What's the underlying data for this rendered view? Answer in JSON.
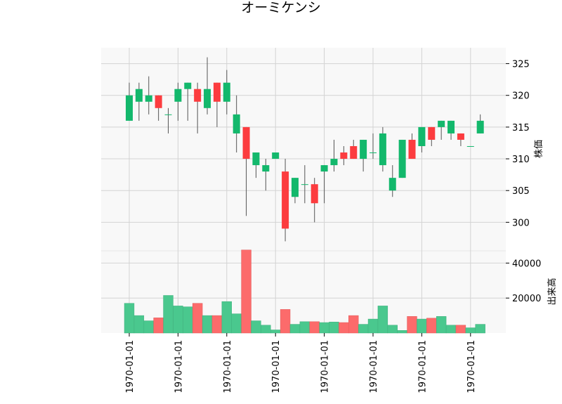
{
  "chart_data": {
    "type": "candlestick",
    "title": "オーミケンシ",
    "price_panel": {
      "ylabel": "株価",
      "yticks": [
        300,
        305,
        310,
        315,
        320,
        325
      ],
      "ylim": [
        295.5,
        327.5
      ]
    },
    "volume_panel": {
      "ylabel": "出来高",
      "yticks": [
        20000,
        40000
      ],
      "ylim": [
        0,
        47000
      ]
    },
    "xtick_labels": [
      "1970-01-01",
      "1970-01-01",
      "1970-01-01",
      "1970-01-01",
      "1970-01-01",
      "1970-01-01",
      "1970-01-01",
      "1970-01-01"
    ],
    "xtick_indices": [
      0,
      5,
      10,
      15,
      20,
      25,
      30,
      35
    ],
    "grid": true,
    "colors": {
      "up": "#13b86c",
      "down": "#fc3c3f",
      "up_volume": "#4ac88e",
      "down_volume": "#fc6b6b",
      "wick": "#555555",
      "background": "#f8f8f8",
      "grid": "#d3d3d3"
    },
    "candles": [
      {
        "open": 316,
        "high": 322,
        "low": 316,
        "close": 320,
        "volume": 17000
      },
      {
        "open": 319,
        "high": 322,
        "low": 316,
        "close": 321,
        "volume": 10000
      },
      {
        "open": 319,
        "high": 323,
        "low": 317,
        "close": 320,
        "volume": 7000
      },
      {
        "open": 320,
        "high": 320,
        "low": 316,
        "close": 318,
        "volume": 8700
      },
      {
        "open": 317,
        "high": 318,
        "low": 314,
        "close": 317,
        "volume": 21500
      },
      {
        "open": 319,
        "high": 322,
        "low": 316,
        "close": 321,
        "volume": 15500
      },
      {
        "open": 321,
        "high": 322,
        "low": 316,
        "close": 322,
        "volume": 15000
      },
      {
        "open": 321,
        "high": 322,
        "low": 314,
        "close": 319,
        "volume": 17000
      },
      {
        "open": 318,
        "high": 326,
        "low": 317,
        "close": 321,
        "volume": 10000
      },
      {
        "open": 322,
        "high": 322,
        "low": 315,
        "close": 319,
        "volume": 10000
      },
      {
        "open": 319,
        "high": 324,
        "low": 317,
        "close": 322,
        "volume": 18000
      },
      {
        "open": 314,
        "high": 320,
        "low": 311,
        "close": 317,
        "volume": 11000
      },
      {
        "open": 315,
        "high": 315,
        "low": 301,
        "close": 310,
        "volume": 47500
      },
      {
        "open": 309,
        "high": 311,
        "low": 307,
        "close": 311,
        "volume": 7000
      },
      {
        "open": 308,
        "high": 310,
        "low": 305,
        "close": 309,
        "volume": 4500
      },
      {
        "open": 310,
        "high": 311,
        "low": 310,
        "close": 311,
        "volume": 1800
      },
      {
        "open": 308,
        "high": 310,
        "low": 297,
        "close": 299,
        "volume": 13500
      },
      {
        "open": 304,
        "high": 307,
        "low": 303,
        "close": 307,
        "volume": 5000
      },
      {
        "open": 306,
        "high": 309,
        "low": 303,
        "close": 306,
        "volume": 6500
      },
      {
        "open": 306,
        "high": 307,
        "low": 300,
        "close": 303,
        "volume": 6500
      },
      {
        "open": 308,
        "high": 309,
        "low": 303,
        "close": 309,
        "volume": 6000
      },
      {
        "open": 309,
        "high": 313,
        "low": 308,
        "close": 310,
        "volume": 6300
      },
      {
        "open": 311,
        "high": 312,
        "low": 309,
        "close": 310,
        "volume": 6000
      },
      {
        "open": 312,
        "high": 313,
        "low": 310,
        "close": 310,
        "volume": 10000
      },
      {
        "open": 310,
        "high": 313,
        "low": 308,
        "close": 313,
        "volume": 5000
      },
      {
        "open": 311,
        "high": 314,
        "low": 310,
        "close": 311,
        "volume": 8000
      },
      {
        "open": 309,
        "high": 315,
        "low": 308,
        "close": 314,
        "volume": 15500
      },
      {
        "open": 305,
        "high": 309,
        "low": 304,
        "close": 307,
        "volume": 4500
      },
      {
        "open": 307,
        "high": 313,
        "low": 307,
        "close": 313,
        "volume": 1500
      },
      {
        "open": 313,
        "high": 314,
        "low": 310,
        "close": 310,
        "volume": 9500
      },
      {
        "open": 312,
        "high": 315,
        "low": 311,
        "close": 315,
        "volume": 8000
      },
      {
        "open": 315,
        "high": 315,
        "low": 312,
        "close": 313,
        "volume": 8500
      },
      {
        "open": 315,
        "high": 316,
        "low": 313,
        "close": 316,
        "volume": 9500
      },
      {
        "open": 314,
        "high": 316,
        "low": 313,
        "close": 316,
        "volume": 4500
      },
      {
        "open": 314,
        "high": 314,
        "low": 312,
        "close": 313,
        "volume": 4500
      },
      {
        "open": 312,
        "high": 312,
        "low": 312,
        "close": 312,
        "volume": 3000
      },
      {
        "open": 314,
        "high": 317,
        "low": 314,
        "close": 316,
        "volume": 5000
      }
    ]
  }
}
